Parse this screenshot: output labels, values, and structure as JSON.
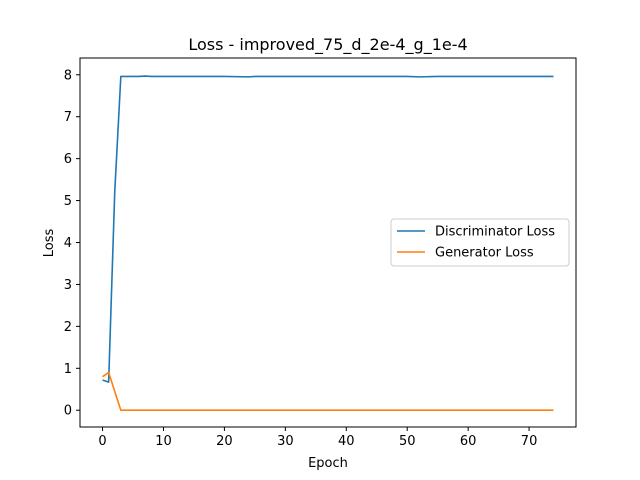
{
  "chart_data": {
    "type": "line",
    "title": "Loss - improved_75_d_2e-4_g_1e-4",
    "xlabel": "Epoch",
    "ylabel": "Loss",
    "xlim": [
      -3.7,
      77.7
    ],
    "ylim": [
      -0.4,
      8.4
    ],
    "xticks": [
      0,
      10,
      20,
      30,
      40,
      50,
      60,
      70
    ],
    "yticks": [
      0,
      1,
      2,
      3,
      4,
      5,
      6,
      7,
      8
    ],
    "grid": false,
    "legend": "center-right",
    "series": [
      {
        "name": "Discriminator Loss",
        "color": "#1f77b4",
        "x": [
          0,
          1,
          2,
          3,
          4,
          5,
          6,
          7,
          8,
          10,
          15,
          20,
          24,
          25,
          30,
          35,
          40,
          45,
          50,
          52,
          55,
          60,
          65,
          70,
          74
        ],
        "y": [
          0.72,
          0.67,
          5.2,
          7.96,
          7.96,
          7.96,
          7.96,
          7.97,
          7.96,
          7.96,
          7.96,
          7.96,
          7.95,
          7.96,
          7.96,
          7.96,
          7.96,
          7.96,
          7.96,
          7.95,
          7.96,
          7.96,
          7.96,
          7.96,
          7.96
        ]
      },
      {
        "name": "Generator Loss",
        "color": "#ff7f0e",
        "x": [
          0,
          1,
          2,
          3,
          4,
          10,
          20,
          30,
          40,
          50,
          60,
          70,
          74
        ],
        "y": [
          0.8,
          0.9,
          0.45,
          0.0,
          0.0,
          0.0,
          0.0,
          0.0,
          0.0,
          0.0,
          0.0,
          0.0,
          0.0
        ]
      }
    ]
  }
}
